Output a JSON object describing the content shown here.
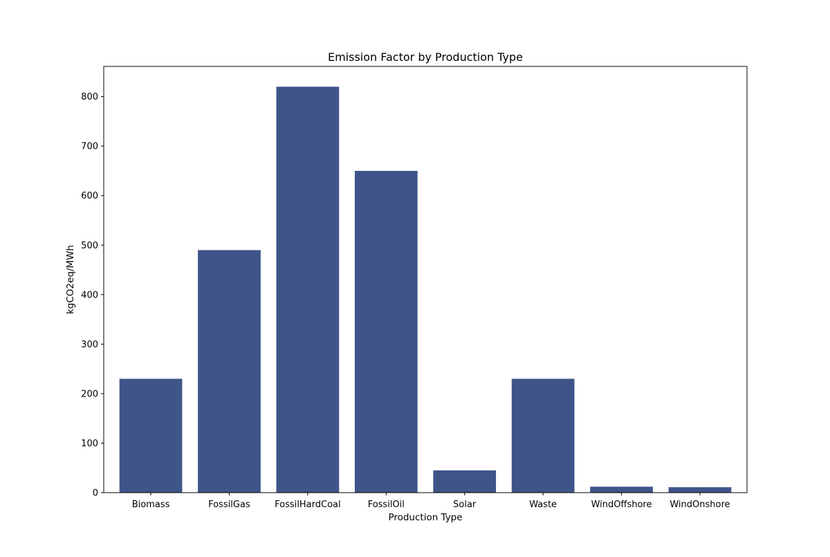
{
  "chart_data": {
    "type": "bar",
    "title": "Emission Factor by Production Type",
    "xlabel": "Production Type",
    "ylabel": "kgCO2eq/MWh",
    "categories": [
      "Biomass",
      "FossilGas",
      "FossilHardCoal",
      "FossilOil",
      "Solar",
      "Waste",
      "WindOffshore",
      "WindOnshore"
    ],
    "values": [
      230,
      490,
      820,
      650,
      45,
      230,
      12,
      11
    ],
    "ylim": [
      0,
      861
    ],
    "yticks": [
      0,
      100,
      200,
      300,
      400,
      500,
      600,
      700,
      800
    ],
    "bar_color": "#3f5589",
    "grid": false,
    "legend": "none"
  }
}
